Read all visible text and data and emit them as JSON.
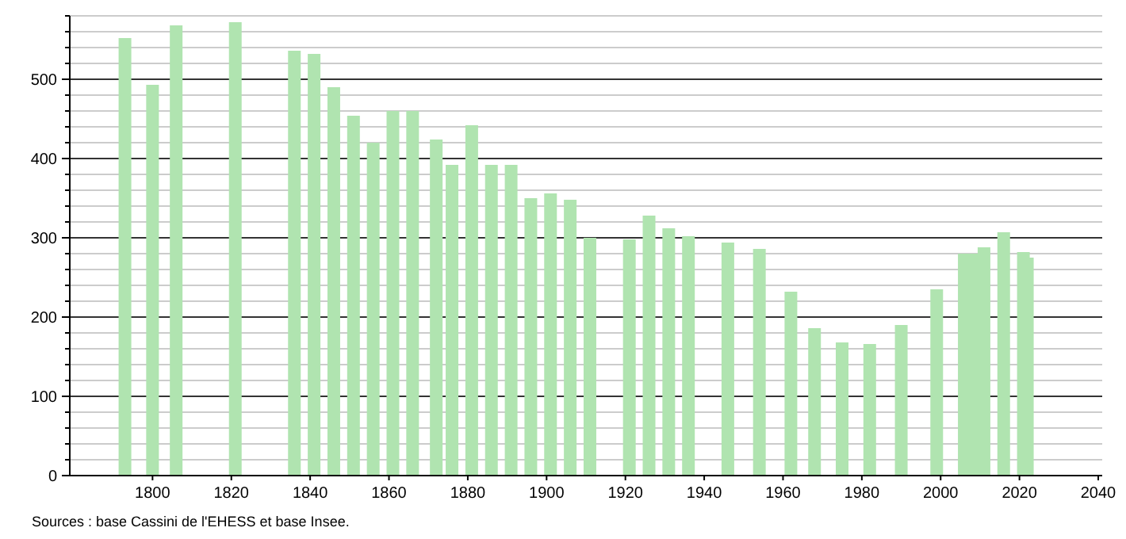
{
  "chart_data": {
    "type": "bar",
    "x": [
      1793,
      1800,
      1806,
      1821,
      1836,
      1841,
      1846,
      1851,
      1856,
      1861,
      1866,
      1872,
      1876,
      1881,
      1886,
      1891,
      1896,
      1901,
      1906,
      1911,
      1921,
      1926,
      1931,
      1936,
      1946,
      1954,
      1962,
      1968,
      1975,
      1982,
      1990,
      1999,
      2006,
      2008,
      2011,
      2016,
      2021,
      2022
    ],
    "values": [
      552,
      493,
      568,
      572,
      536,
      532,
      490,
      454,
      420,
      460,
      460,
      424,
      392,
      442,
      392,
      392,
      350,
      356,
      348,
      300,
      298,
      328,
      312,
      302,
      294,
      286,
      232,
      186,
      168,
      166,
      190,
      235,
      280,
      280,
      288,
      307,
      282,
      275
    ],
    "color": "#b0e4b0",
    "xlim": [
      1779,
      2041
    ],
    "xticks": [
      1800,
      1820,
      1840,
      1860,
      1880,
      1900,
      1920,
      1940,
      1960,
      1980,
      2000,
      2020,
      2040
    ],
    "ylim": [
      0,
      580
    ],
    "yticks": [
      0,
      {
        "value": 20,
        "label": null
      },
      {
        "value": 40,
        "label": null
      },
      {
        "value": 60,
        "label": null
      },
      {
        "value": 80,
        "label": null
      },
      100,
      {
        "value": 120,
        "label": null
      },
      {
        "value": 140,
        "label": null
      },
      {
        "value": 160,
        "label": null
      },
      {
        "value": 180,
        "label": null
      },
      200,
      {
        "value": 220,
        "label": null
      },
      {
        "value": 240,
        "label": null
      },
      {
        "value": 260,
        "label": null
      },
      {
        "value": 280,
        "label": null
      },
      300,
      {
        "value": 320,
        "label": null
      },
      {
        "value": 340,
        "label": null
      },
      {
        "value": 360,
        "label": null
      },
      {
        "value": 380,
        "label": null
      },
      400,
      {
        "value": 420,
        "label": null
      },
      {
        "value": 440,
        "label": null
      },
      {
        "value": 460,
        "label": null
      },
      {
        "value": 480,
        "label": null
      },
      500,
      {
        "value": 520,
        "label": null
      },
      {
        "value": 540,
        "label": null
      },
      {
        "value": 560,
        "label": null
      },
      {
        "value": 580,
        "label": null
      }
    ],
    "grid": "y",
    "annotations": [
      "Sources : base Cassini de l'EHESS et base Insee."
    ]
  }
}
